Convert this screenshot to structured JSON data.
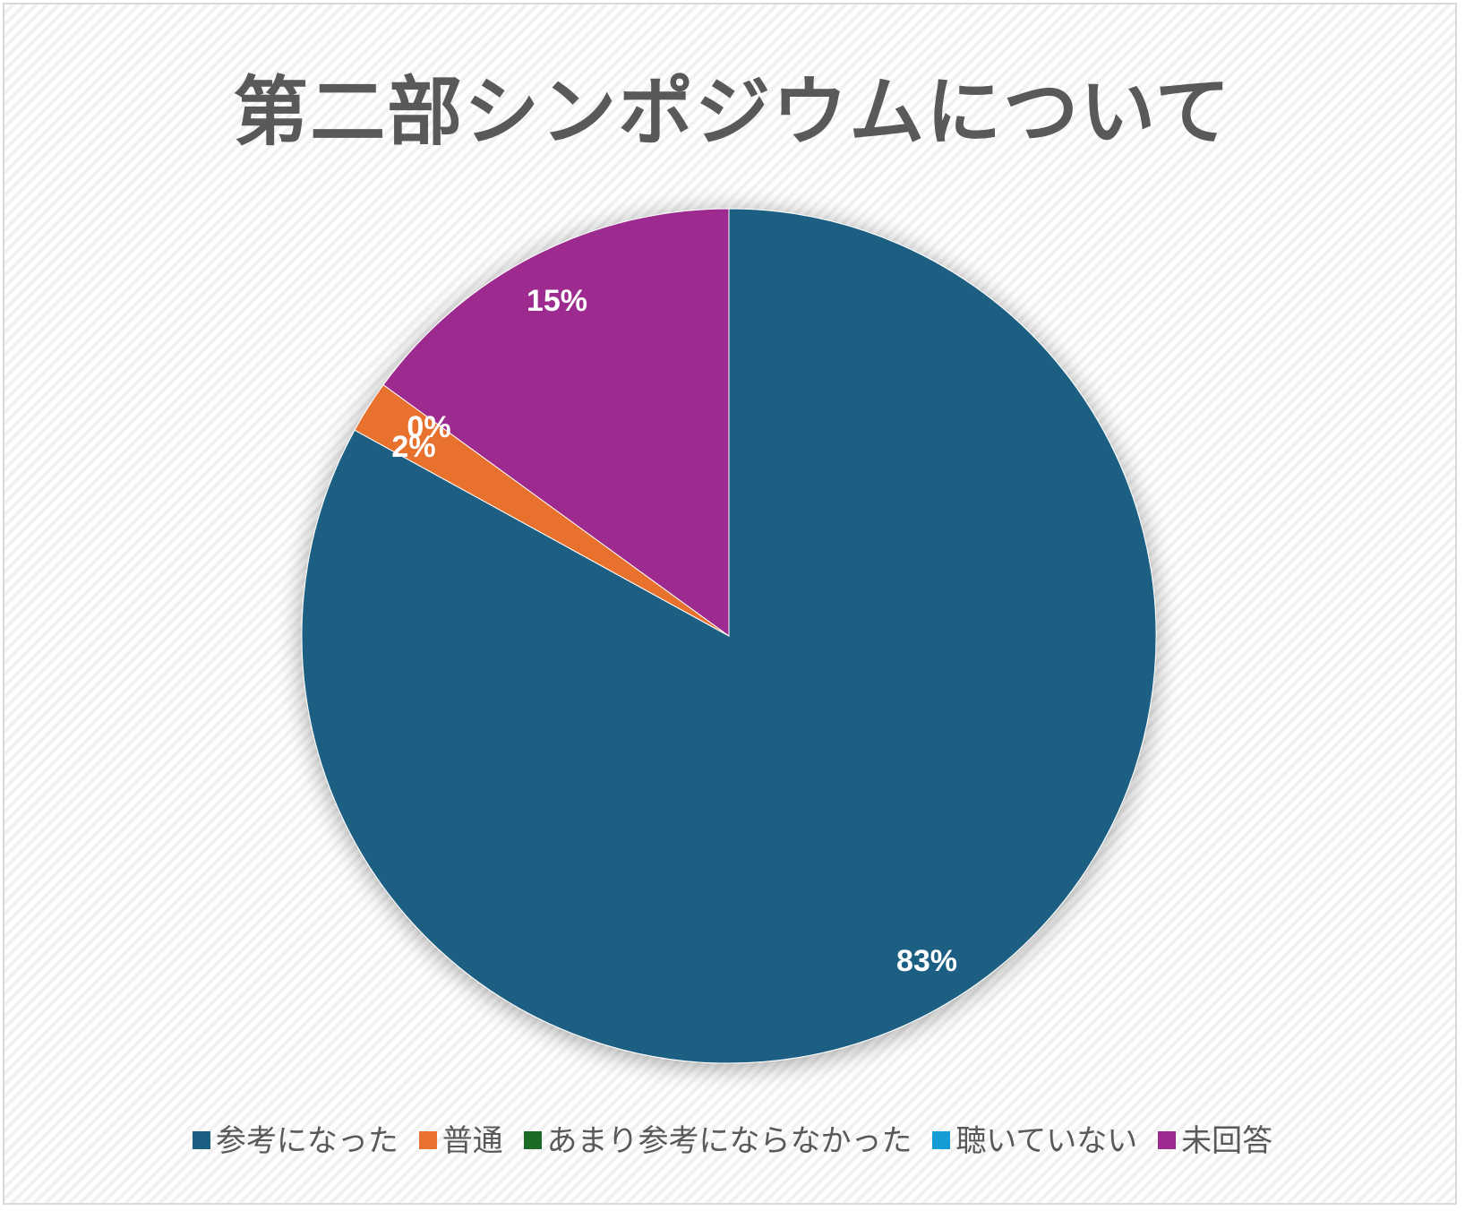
{
  "chart_data": {
    "type": "pie",
    "title": "第二部シンポジウムについて",
    "categories": [
      "参考になった",
      "普通",
      "あまり参考にならなかった",
      "聴いていない",
      "未回答"
    ],
    "values": [
      83,
      2,
      0,
      0,
      15
    ],
    "value_labels": [
      "83%",
      "2%",
      "0%",
      "0%",
      "15%"
    ],
    "colors": [
      "#1a5f82",
      "#e8712f",
      "#1b6b26",
      "#149cd6",
      "#9d2a8e"
    ],
    "start_angle": "12 o'clock, clockwise",
    "legend_position": "bottom"
  },
  "title": "第二部シンポジウムについて",
  "labels": {
    "s0": "83%",
    "s1": "2%",
    "s2": "0%",
    "s4": "15%"
  },
  "legend": [
    {
      "label": "参考になった",
      "color": "#1a5f82"
    },
    {
      "label": "普通",
      "color": "#e8712f"
    },
    {
      "label": "あまり参考にならなかった",
      "color": "#1b6b26"
    },
    {
      "label": "聴いていない",
      "color": "#149cd6"
    },
    {
      "label": "未回答",
      "color": "#9d2a8e"
    }
  ]
}
